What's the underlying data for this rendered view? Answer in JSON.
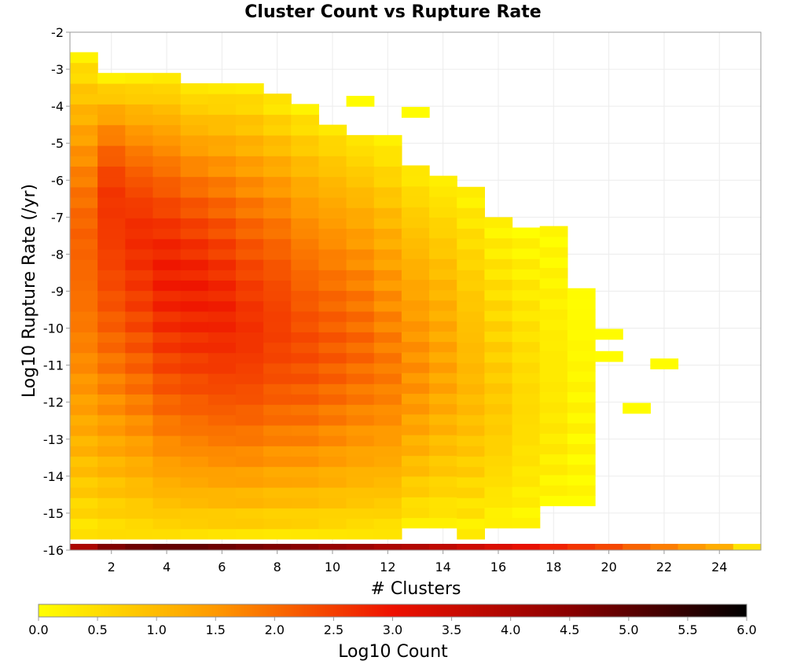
{
  "chart_data": {
    "type": "heatmap",
    "title": "Cluster Count vs Rupture Rate",
    "xlabel": "# Clusters",
    "ylabel": "Log10 Rupture Rate (/yr)",
    "xlim": [
      0.5,
      25.5
    ],
    "ylim": [
      -16,
      -2
    ],
    "x_ticks": [
      2,
      4,
      6,
      8,
      10,
      12,
      14,
      16,
      18,
      20,
      22,
      24
    ],
    "y_ticks": [
      -2,
      -3,
      -4,
      -5,
      -6,
      -7,
      -8,
      -9,
      -10,
      -11,
      -12,
      -13,
      -14,
      -15,
      -16
    ],
    "x_bin_width": 1,
    "y_bin_width": 0.28,
    "grid": true,
    "colorbar": {
      "label": "Log10 Count",
      "range": [
        0,
        6
      ],
      "ticks": [
        "0.0",
        "0.5",
        "1.0",
        "1.5",
        "2.0",
        "2.5",
        "3.0",
        "3.5",
        "4.0",
        "4.5",
        "5.0",
        "5.5",
        "6.0"
      ],
      "colors": [
        "#ffff00",
        "#ff9900",
        "#ee1100",
        "#8a0000",
        "#000000"
      ],
      "placement": "bottom"
    },
    "columns": [
      {
        "x": 1,
        "top": -2.7,
        "bottom": -15.7,
        "peak": 2.1,
        "peak_y": -7.5
      },
      {
        "x": 2,
        "top": -3.3,
        "bottom": -15.7,
        "peak": 2.6,
        "peak_y": -6.5
      },
      {
        "x": 3,
        "top": -3.3,
        "bottom": -15.7,
        "peak": 2.7,
        "peak_y": -7.5
      },
      {
        "x": 4,
        "top": -3.3,
        "bottom": -15.7,
        "peak": 2.85,
        "peak_y": -8.5
      },
      {
        "x": 5,
        "top": -3.6,
        "bottom": -15.7,
        "peak": 2.85,
        "peak_y": -9.0
      },
      {
        "x": 6,
        "top": -3.6,
        "bottom": -15.7,
        "peak": 2.8,
        "peak_y": -9.5
      },
      {
        "x": 7,
        "top": -3.6,
        "bottom": -15.7,
        "peak": 2.65,
        "peak_y": -10.0
      },
      {
        "x": 8,
        "top": -3.9,
        "bottom": -15.7,
        "peak": 2.5,
        "peak_y": -10.0
      },
      {
        "x": 9,
        "top": -4.2,
        "bottom": -15.7,
        "peak": 2.35,
        "peak_y": -10.5
      },
      {
        "x": 10,
        "top": -4.5,
        "bottom": -15.7,
        "peak": 2.2,
        "peak_y": -10.5
      },
      {
        "x": 11,
        "top": -4.8,
        "bottom": -15.7,
        "peak": 2.05,
        "peak_y": -10.5
      },
      {
        "x": 12,
        "top": -5.0,
        "bottom": -15.7,
        "peak": 1.85,
        "peak_y": -11.0
      },
      {
        "x": 13,
        "top": -5.6,
        "bottom": -15.4,
        "peak": 1.6,
        "peak_y": -11.0
      },
      {
        "x": 14,
        "top": -5.9,
        "bottom": -15.4,
        "peak": 1.35,
        "peak_y": -11.0
      },
      {
        "x": 15,
        "top": -6.2,
        "bottom": -15.7,
        "peak": 1.05,
        "peak_y": -11.5
      },
      {
        "x": 16,
        "top": -7.0,
        "bottom": -15.4,
        "peak": 0.8,
        "peak_y": -12.0
      },
      {
        "x": 17,
        "top": -7.3,
        "bottom": -15.4,
        "peak": 0.55,
        "peak_y": -12.0
      },
      {
        "x": 18,
        "top": -7.3,
        "bottom": -14.8,
        "peak": 0.35,
        "peak_y": -12.5
      },
      {
        "x": 19,
        "top": -9.0,
        "bottom": -14.8,
        "peak": 0.15,
        "peak_y": -12.5
      }
    ],
    "isolated_cells": [
      {
        "x": 11,
        "y": -4.0,
        "value": 0.05
      },
      {
        "x": 13,
        "y": -4.3,
        "value": 0.05
      },
      {
        "x": 20,
        "y": -10.3,
        "value": 0.05
      },
      {
        "x": 20,
        "y": -10.9,
        "value": 0.05
      },
      {
        "x": 21,
        "y": -12.3,
        "value": 0.05
      },
      {
        "x": 22,
        "y": -11.1,
        "value": 0.05
      }
    ],
    "bottom_row": {
      "y": -16,
      "values": [
        4.0,
        4.6,
        4.8,
        4.9,
        4.9,
        4.8,
        4.7,
        4.6,
        4.5,
        4.3,
        4.2,
        4.0,
        3.9,
        3.7,
        3.5,
        3.3,
        3.1,
        2.8,
        2.6,
        2.4,
        2.1,
        1.8,
        1.5,
        1.2,
        0.4
      ]
    }
  }
}
